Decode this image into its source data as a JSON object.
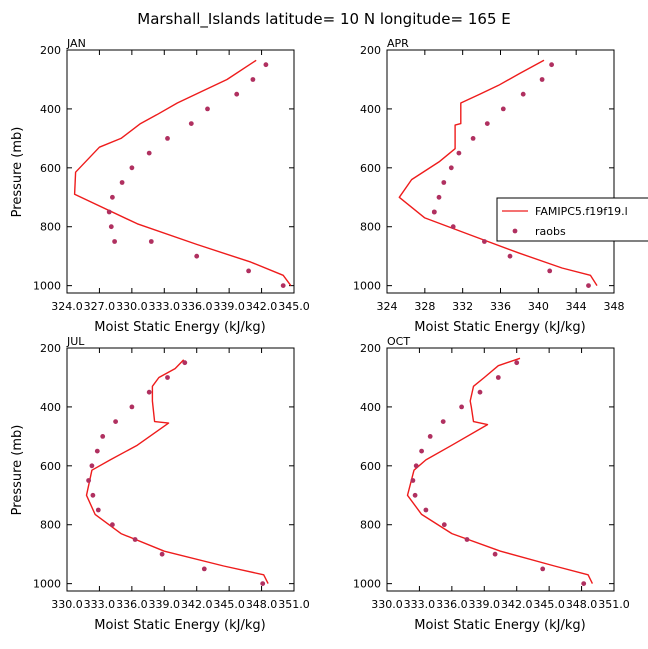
{
  "figure": {
    "title": "Marshall_Islands   latitude= 10 N longitude= 165 E",
    "colors": {
      "model": "#ee1c1c",
      "obs": "#b03060",
      "axis": "#000000"
    }
  },
  "legend": {
    "entries": [
      {
        "label": "FAMIPC5.f19f19.l",
        "style": "line"
      },
      {
        "label": "raobs",
        "style": "marker"
      }
    ]
  },
  "chart_data": [
    {
      "type": "line",
      "panel": "JAN",
      "title": "JAN",
      "xlabel": "Moist Static Energy (kJ/kg)",
      "ylabel": "Pressure (mb)",
      "xlim": [
        324.0,
        345.0
      ],
      "ylim": [
        200,
        1025
      ],
      "y_inverted": true,
      "xticks": [
        324.0,
        327.0,
        330.0,
        333.0,
        336.0,
        339.0,
        342.0,
        345.0
      ],
      "xticklabels": [
        "324.0",
        "327.0",
        "330.0",
        "333.0",
        "336.0",
        "339.0",
        "342.0",
        "345.0"
      ],
      "yticks": [
        200,
        400,
        600,
        800,
        1000
      ],
      "series": [
        {
          "name": "FAMIPC5.f19f19.l",
          "style": "line",
          "x": [
            341.5,
            338.8,
            336.5,
            334.2,
            332.3,
            330.8,
            329.0,
            327.0,
            324.8,
            324.7,
            330.5,
            336.0,
            341.0,
            344.0,
            344.7
          ],
          "y": [
            235,
            300,
            340,
            380,
            420,
            450,
            500,
            530,
            615,
            690,
            790,
            860,
            920,
            965,
            1000
          ]
        },
        {
          "name": "raobs",
          "style": "marker",
          "x": [
            342.4,
            341.2,
            339.7,
            337.0,
            335.5,
            333.3,
            331.6,
            330.0,
            329.1,
            328.2,
            327.9,
            328.1,
            328.4,
            331.8,
            336.0,
            340.8,
            344.0
          ],
          "y": [
            250,
            300,
            350,
            400,
            450,
            500,
            550,
            600,
            650,
            700,
            750,
            800,
            850,
            850,
            900,
            950,
            1000
          ]
        }
      ]
    },
    {
      "type": "line",
      "panel": "APR",
      "title": "APR",
      "xlabel": "Moist Static Energy (kJ/kg)",
      "ylabel": "",
      "xlim": [
        324,
        348
      ],
      "ylim": [
        200,
        1025
      ],
      "y_inverted": true,
      "xticks": [
        324,
        328,
        332,
        336,
        340,
        344,
        348
      ],
      "xticklabels": [
        "324",
        "328",
        "332",
        "336",
        "340",
        "344",
        "348"
      ],
      "yticks": [
        200,
        400,
        600,
        800,
        1000
      ],
      "series": [
        {
          "name": "FAMIPC5.f19f19.l",
          "style": "line",
          "x": [
            340.6,
            338.0,
            335.8,
            333.8,
            331.8,
            331.8,
            331.2,
            331.2,
            329.5,
            326.6,
            325.3,
            328.0,
            333.0,
            338.0,
            342.5,
            345.5,
            346.2
          ],
          "y": [
            235,
            280,
            320,
            350,
            380,
            450,
            455,
            535,
            580,
            640,
            700,
            770,
            830,
            890,
            940,
            965,
            1000
          ]
        },
        {
          "name": "raobs",
          "style": "marker",
          "x": [
            341.4,
            340.4,
            338.4,
            336.3,
            334.6,
            333.1,
            331.6,
            330.8,
            330.0,
            329.5,
            329.0,
            329.0,
            331.0,
            334.3,
            337.0,
            341.2,
            345.3
          ],
          "y": [
            250,
            300,
            350,
            400,
            450,
            500,
            550,
            600,
            650,
            700,
            750,
            750,
            800,
            850,
            900,
            950,
            1000
          ]
        }
      ]
    },
    {
      "type": "line",
      "panel": "JUL",
      "title": "JUL",
      "xlabel": "Moist Static Energy (kJ/kg)",
      "ylabel": "Pressure (mb)",
      "xlim": [
        330.0,
        351.0
      ],
      "ylim": [
        200,
        1025
      ],
      "y_inverted": true,
      "xticks": [
        330.0,
        333.0,
        336.0,
        339.0,
        342.0,
        345.0,
        348.0,
        351.0
      ],
      "xticklabels": [
        "330.0",
        "333.0",
        "336.0",
        "339.0",
        "342.0",
        "345.0",
        "348.0",
        "351.0"
      ],
      "yticks": [
        200,
        400,
        600,
        800,
        1000
      ],
      "series": [
        {
          "name": "FAMIPC5.f19f19.l",
          "style": "line",
          "x": [
            340.8,
            340.0,
            338.5,
            337.9,
            337.9,
            338.1,
            339.4,
            336.5,
            334.0,
            332.3,
            331.8,
            332.6,
            335.0,
            339.0,
            344.5,
            348.2,
            348.6
          ],
          "y": [
            240,
            270,
            300,
            330,
            380,
            450,
            455,
            530,
            580,
            615,
            700,
            765,
            830,
            890,
            940,
            970,
            1000
          ]
        },
        {
          "name": "raobs",
          "style": "marker",
          "x": [
            340.9,
            339.3,
            337.6,
            336.0,
            334.5,
            333.3,
            332.8,
            332.3,
            332.0,
            332.4,
            332.9,
            334.2,
            336.3,
            338.8,
            342.7,
            348.1
          ],
          "y": [
            250,
            300,
            350,
            400,
            450,
            500,
            550,
            600,
            650,
            700,
            750,
            800,
            850,
            900,
            950,
            1000
          ]
        }
      ]
    },
    {
      "type": "line",
      "panel": "OCT",
      "title": "OCT",
      "xlabel": "Moist Static Energy (kJ/kg)",
      "ylabel": "",
      "xlim": [
        330.0,
        351.0
      ],
      "ylim": [
        200,
        1025
      ],
      "y_inverted": true,
      "xticks": [
        330.0,
        333.0,
        336.0,
        339.0,
        342.0,
        345.0,
        348.0,
        351.0
      ],
      "xticklabels": [
        "330.0",
        "333.0",
        "336.0",
        "339.0",
        "342.0",
        "345.0",
        "348.0",
        "351.0"
      ],
      "yticks": [
        200,
        400,
        600,
        800,
        1000
      ],
      "series": [
        {
          "name": "FAMIPC5.f19f19.l",
          "style": "line",
          "x": [
            342.3,
            340.3,
            339.0,
            338.0,
            337.7,
            337.8,
            338.0,
            339.3,
            336.0,
            333.6,
            332.5,
            331.9,
            333.2,
            336.0,
            340.5,
            345.5,
            348.6,
            349.0
          ],
          "y": [
            235,
            260,
            300,
            330,
            380,
            400,
            450,
            460,
            530,
            580,
            615,
            700,
            765,
            830,
            890,
            940,
            970,
            1000
          ]
        },
        {
          "name": "raobs",
          "style": "marker",
          "x": [
            342.0,
            340.3,
            338.6,
            336.9,
            335.2,
            334.0,
            333.2,
            332.7,
            332.4,
            332.6,
            333.6,
            335.3,
            337.4,
            340.0,
            344.4,
            348.2
          ],
          "y": [
            250,
            300,
            350,
            400,
            450,
            500,
            550,
            600,
            650,
            700,
            750,
            800,
            850,
            900,
            950,
            1000
          ]
        }
      ]
    }
  ]
}
